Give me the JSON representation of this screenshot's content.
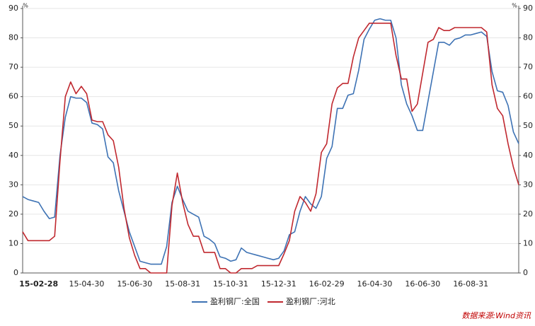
{
  "chart_data": {
    "type": "line",
    "categories": [
      null,
      null,
      null,
      "15-02-28",
      null,
      null,
      null,
      null,
      null,
      null,
      null,
      null,
      "15-04-30",
      null,
      null,
      null,
      null,
      null,
      null,
      null,
      null,
      "15-06-30",
      null,
      null,
      null,
      null,
      null,
      null,
      null,
      null,
      "15-08-31",
      null,
      null,
      null,
      null,
      null,
      null,
      null,
      null,
      "15-10-31",
      null,
      null,
      null,
      null,
      null,
      null,
      null,
      null,
      "15-12-31",
      null,
      null,
      null,
      null,
      null,
      null,
      null,
      null,
      "16-02-29",
      null,
      null,
      null,
      null,
      null,
      null,
      null,
      null,
      "16-04-30",
      null,
      null,
      null,
      null,
      null,
      null,
      null,
      null,
      "16-06-30",
      null,
      null,
      null,
      null,
      null,
      null,
      null,
      null,
      "16-08-31",
      null,
      null,
      null,
      null,
      null,
      null,
      null,
      null,
      null
    ],
    "series": [
      {
        "name": "盈利钢厂:全国",
        "color": "#3d72b4",
        "values": [
          26,
          25,
          24.5,
          24,
          21,
          18.5,
          19,
          40,
          53,
          60,
          59.5,
          59.5,
          58,
          51,
          50.5,
          49,
          39.5,
          37.5,
          28,
          21,
          14,
          9,
          4,
          3.5,
          3,
          3,
          3,
          9,
          24,
          29.5,
          25,
          21,
          20,
          19,
          12.5,
          11.5,
          10,
          5.5,
          5,
          4,
          4.5,
          8.5,
          7,
          6.5,
          6,
          5.5,
          5,
          4.5,
          5,
          7.5,
          13,
          14,
          21,
          26,
          23.5,
          22,
          26,
          39,
          43,
          56,
          56,
          60.5,
          61,
          69,
          79.5,
          83,
          86,
          86.5,
          86,
          86,
          80,
          64,
          57.5,
          53.5,
          48.5,
          48.5,
          58.5,
          68.5,
          78.5,
          78.5,
          77.5,
          79.5,
          80,
          81,
          81,
          81.5,
          82,
          80.5,
          68.5,
          62,
          61.5,
          57,
          48,
          44
        ]
      },
      {
        "name": "盈利钢厂:河北",
        "color": "#c0282f",
        "values": [
          14,
          11,
          11,
          11,
          11,
          11,
          12.5,
          38,
          60,
          65,
          61,
          63.5,
          61,
          52,
          51.5,
          51.5,
          47,
          45,
          36,
          22,
          12,
          6,
          1.5,
          1.5,
          0,
          0,
          0,
          0,
          23,
          34,
          24,
          16.5,
          12.5,
          12.5,
          7,
          7,
          7,
          1.5,
          1.5,
          0,
          0,
          1.5,
          1.5,
          1.5,
          2.5,
          2.5,
          2.5,
          2.5,
          2.5,
          6.5,
          11,
          21,
          26,
          24,
          21,
          27,
          41,
          44,
          57.5,
          63,
          64.5,
          64.5,
          73.5,
          80,
          82.5,
          85,
          85,
          85,
          85,
          85,
          74,
          66,
          66,
          55,
          57.5,
          68,
          78.5,
          79.5,
          83.5,
          82.5,
          82.5,
          83.5,
          83.5,
          83.5,
          83.5,
          83.5,
          83.5,
          82,
          64,
          56,
          53.5,
          44,
          36,
          30
        ]
      }
    ],
    "ylim": [
      0,
      90
    ],
    "yticks": [
      0,
      10,
      20,
      30,
      40,
      50,
      60,
      70,
      80,
      90
    ],
    "y_unit": "%",
    "y2lim": [
      0,
      90
    ],
    "y2ticks": [
      0,
      10,
      20,
      30,
      40,
      50,
      60,
      70,
      80,
      90
    ],
    "y2_unit": "%",
    "grid": true,
    "legend": "bottom",
    "source": "数据来源:Wind资讯"
  }
}
